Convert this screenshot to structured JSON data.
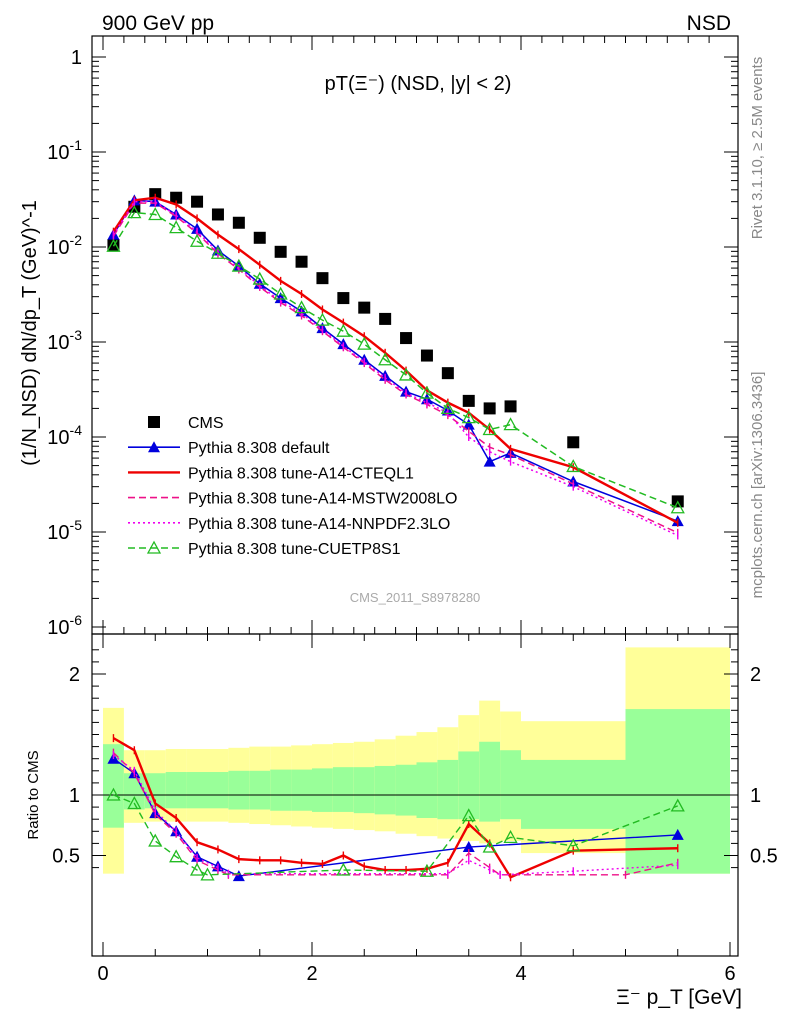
{
  "header": {
    "left": "900 GeV pp",
    "right": "NSD"
  },
  "side_text": {
    "rivet": "Rivet 3.1.10, ≥ 2.5M events",
    "mcplots": "mcplots.cern.ch [arXiv:1306.3436]"
  },
  "chart_data": [
    {
      "type": "scatter",
      "panel": "main",
      "title": "pT(Ξ⁻) (NSD, |y| < 2)",
      "ylabel": "(1/N_NSD) dN/dp_T (GeV)^-1",
      "xlabel": "Ξ⁻ p_T [GeV]",
      "yscale": "log",
      "xlim": [
        -0.1,
        6.1
      ],
      "ylim": [
        1e-06,
        2
      ],
      "y_ticks": [
        "10^-6",
        "10^-5",
        "10^-4",
        "10^-3",
        "10^-2",
        "10^-1",
        "1"
      ],
      "x_ticks": [
        "0",
        "2",
        "4",
        "6"
      ],
      "watermark": "CMS_2011_S8978280",
      "legend_position": "bottom-left",
      "series": [
        {
          "name": "CMS",
          "color": "#000000",
          "marker": "square",
          "x": [
            0.1,
            0.3,
            0.5,
            0.7,
            0.9,
            1.1,
            1.3,
            1.5,
            1.7,
            1.9,
            2.1,
            2.3,
            2.5,
            2.7,
            2.9,
            3.1,
            3.3,
            3.5,
            3.7,
            3.9,
            4.5,
            5.5
          ],
          "y": [
            0.0105,
            0.0265,
            0.036,
            0.033,
            0.03,
            0.022,
            0.018,
            0.0125,
            0.0089,
            0.007,
            0.0047,
            0.0029,
            0.0023,
            0.00175,
            0.0011,
            0.00072,
            0.00047,
            0.00024,
            0.0002,
            0.00021,
            8.8e-05,
            2.1e-05
          ]
        },
        {
          "name": "Pythia 8.308 default",
          "color": "#0000dd",
          "marker": "triangle-filled",
          "line": "solid",
          "x": [
            0.1,
            0.3,
            0.5,
            0.7,
            0.9,
            1.1,
            1.3,
            1.5,
            1.7,
            1.9,
            2.1,
            2.3,
            2.5,
            2.7,
            2.9,
            3.1,
            3.3,
            3.5,
            3.7,
            3.9,
            4.5,
            5.5
          ],
          "y": [
            0.0135,
            0.031,
            0.03,
            0.022,
            0.0155,
            0.0092,
            0.0063,
            0.0041,
            0.0029,
            0.0021,
            0.0014,
            0.00095,
            0.00065,
            0.00044,
            0.0003,
            0.00025,
            0.00019,
            0.000135,
            5.5e-05,
            6.8e-05,
            3.4e-05,
            1.3e-05
          ]
        },
        {
          "name": "Pythia 8.308 tune-A14-CTEQL1",
          "color": "#ee0000",
          "marker": "none",
          "line": "solid",
          "x": [
            0.1,
            0.3,
            0.5,
            0.7,
            0.9,
            1.1,
            1.3,
            1.5,
            1.7,
            1.9,
            2.1,
            2.3,
            2.5,
            2.7,
            2.9,
            3.1,
            3.3,
            3.5,
            3.7,
            3.9,
            4.5,
            5.5
          ],
          "y": [
            0.0145,
            0.031,
            0.033,
            0.028,
            0.02,
            0.0135,
            0.0095,
            0.0065,
            0.0044,
            0.0032,
            0.0022,
            0.0016,
            0.00115,
            0.00077,
            0.0005,
            0.00031,
            0.00023,
            0.00018,
            0.00012,
            7.5e-05,
            4.8e-05,
            1.25e-05
          ]
        },
        {
          "name": "Pythia 8.308 tune-A14-MSTW2008LO",
          "color": "#ee1188",
          "marker": "none",
          "line": "dashed",
          "x": [
            0.1,
            0.3,
            0.5,
            0.7,
            0.9,
            1.1,
            1.3,
            1.5,
            1.7,
            1.9,
            2.1,
            2.3,
            2.5,
            2.7,
            2.9,
            3.1,
            3.3,
            3.5,
            3.7,
            3.9,
            4.5,
            5.5
          ],
          "y": [
            0.013,
            0.029,
            0.029,
            0.021,
            0.014,
            0.0085,
            0.0058,
            0.0038,
            0.0026,
            0.0019,
            0.0013,
            0.00088,
            0.0006,
            0.0004,
            0.00028,
            0.00022,
            0.00017,
            0.000115,
            7.8e-05,
            6.5e-05,
            3.2e-05,
            9.8e-06
          ]
        },
        {
          "name": "Pythia 8.308 tune-A14-NNPDF2.3LO",
          "color": "#ee00ee",
          "marker": "none",
          "line": "dotted",
          "x": [
            0.1,
            0.3,
            0.5,
            0.7,
            0.9,
            1.1,
            1.3,
            1.5,
            1.7,
            1.9,
            2.1,
            2.3,
            2.5,
            2.7,
            2.9,
            3.1,
            3.3,
            3.5,
            3.7,
            3.9,
            4.5,
            5.5
          ],
          "y": [
            0.0135,
            0.03,
            0.03,
            0.0215,
            0.0145,
            0.0088,
            0.006,
            0.0039,
            0.0027,
            0.002,
            0.00135,
            0.0009,
            0.00062,
            0.00042,
            0.00029,
            0.00023,
            0.00018,
            0.0001,
            7e-05,
            5.5e-05,
            3e-05,
            9.2e-06
          ]
        },
        {
          "name": "Pythia 8.308 tune-CUETP8S1",
          "color": "#22bb22",
          "marker": "triangle-open",
          "line": "dashed",
          "x": [
            0.1,
            0.3,
            0.5,
            0.7,
            0.9,
            1.1,
            1.3,
            1.5,
            1.7,
            1.9,
            2.1,
            2.3,
            2.5,
            2.7,
            2.9,
            3.1,
            3.3,
            3.5,
            3.7,
            3.9,
            4.5,
            5.5
          ],
          "y": [
            0.0102,
            0.023,
            0.022,
            0.016,
            0.0115,
            0.0086,
            0.0063,
            0.0046,
            0.0032,
            0.0023,
            0.0017,
            0.0013,
            0.00095,
            0.00065,
            0.00045,
            0.00029,
            0.0002,
            0.00016,
            0.00012,
            0.000135,
            4.9e-05,
            1.8e-05
          ]
        }
      ]
    },
    {
      "type": "line",
      "panel": "ratio",
      "ylabel": "Ratio to CMS",
      "xlabel": "Ξ⁻ p_T [GeV]",
      "xlim": [
        -0.1,
        6.1
      ],
      "ylim": [
        0.35,
        2.3
      ],
      "y_ticks": [
        "0.5",
        "1",
        "2"
      ],
      "x_ticks": [
        "0",
        "2",
        "4",
        "6"
      ],
      "bands": {
        "edges": [
          0,
          0.2,
          0.4,
          0.6,
          0.8,
          1.0,
          1.2,
          1.4,
          1.6,
          1.8,
          2.0,
          2.2,
          2.4,
          2.6,
          2.8,
          3.0,
          3.2,
          3.4,
          3.6,
          3.8,
          4.0,
          5.0,
          6.0
        ],
        "outer_color": "#ffff99",
        "inner_color": "#99ff99",
        "outer_lo": [
          0.35,
          0.77,
          0.78,
          0.78,
          0.78,
          0.78,
          0.77,
          0.76,
          0.75,
          0.74,
          0.73,
          0.72,
          0.71,
          0.7,
          0.68,
          0.66,
          0.64,
          0.62,
          0.6,
          0.62,
          0.52,
          0.35
        ],
        "outer_hi": [
          1.72,
          1.37,
          1.37,
          1.38,
          1.38,
          1.38,
          1.39,
          1.4,
          1.4,
          1.41,
          1.42,
          1.43,
          1.44,
          1.46,
          1.49,
          1.52,
          1.56,
          1.66,
          1.78,
          1.69,
          1.61,
          2.22
        ],
        "inner_lo": [
          0.73,
          0.88,
          0.89,
          0.89,
          0.89,
          0.89,
          0.88,
          0.88,
          0.87,
          0.87,
          0.86,
          0.86,
          0.85,
          0.84,
          0.83,
          0.81,
          0.8,
          0.8,
          0.78,
          0.8,
          0.72,
          0.35
        ],
        "inner_hi": [
          1.42,
          1.18,
          1.18,
          1.19,
          1.19,
          1.19,
          1.2,
          1.2,
          1.21,
          1.21,
          1.22,
          1.23,
          1.23,
          1.24,
          1.25,
          1.27,
          1.29,
          1.36,
          1.44,
          1.37,
          1.29,
          1.71
        ]
      },
      "series": [
        {
          "name": "Pythia 8.308 default",
          "color": "#0000dd",
          "marker": "triangle-filled",
          "line": "solid",
          "x": [
            0.1,
            0.3,
            0.5,
            0.7,
            0.9,
            1.1,
            1.3,
            3.5,
            5.5
          ],
          "y": [
            1.3,
            1.18,
            0.85,
            0.7,
            0.49,
            0.41,
            0.33,
            0.57,
            0.67
          ]
        },
        {
          "name": "Pythia 8.308 tune-A14-CTEQL1",
          "color": "#ee0000",
          "marker": "none",
          "line": "solid",
          "x": [
            0.1,
            0.3,
            0.5,
            0.7,
            0.9,
            1.1,
            1.3,
            1.5,
            1.7,
            1.9,
            2.1,
            2.3,
            2.5,
            2.7,
            2.9,
            3.1,
            3.3,
            3.5,
            3.7,
            3.9,
            4.5,
            5.5
          ],
          "y": [
            1.47,
            1.37,
            0.93,
            0.81,
            0.61,
            0.55,
            0.47,
            0.46,
            0.46,
            0.44,
            0.43,
            0.5,
            0.41,
            0.38,
            0.38,
            0.39,
            0.44,
            0.76,
            0.6,
            0.32,
            0.54,
            0.56
          ]
        },
        {
          "name": "Pythia 8.308 tune-A14-MSTW2008LO",
          "color": "#ee1188",
          "marker": "none",
          "line": "dashed",
          "x": [
            0.1,
            0.3,
            0.5,
            0.7,
            0.9,
            1.1,
            1.2,
            3.3,
            3.5,
            3.7,
            3.8,
            5.0,
            5.5
          ],
          "y": [
            1.35,
            1.18,
            0.84,
            0.68,
            0.46,
            0.38,
            0.34,
            0.34,
            0.52,
            0.4,
            0.34,
            0.34,
            0.44
          ]
        },
        {
          "name": "Pythia 8.308 tune-A14-NNPDF2.3LO",
          "color": "#ee00ee",
          "marker": "none",
          "line": "dotted",
          "x": [
            0.1,
            0.3,
            0.5,
            0.7,
            0.9,
            1.1,
            1.2,
            3.3,
            3.5,
            3.7,
            3.8,
            4.5,
            5.5
          ],
          "y": [
            1.33,
            1.2,
            0.87,
            0.7,
            0.48,
            0.4,
            0.35,
            0.35,
            0.46,
            0.38,
            0.34,
            0.37,
            0.42
          ]
        },
        {
          "name": "Pythia 8.308 tune-CUETP8S1",
          "color": "#22bb22",
          "marker": "triangle-open",
          "line": "dashed",
          "x": [
            0.1,
            0.3,
            0.5,
            0.7,
            0.9,
            1.0,
            2.3,
            3.1,
            3.5,
            3.7,
            3.9,
            4.5,
            5.5
          ],
          "y": [
            1.0,
            0.93,
            0.62,
            0.49,
            0.38,
            0.34,
            0.38,
            0.37,
            0.83,
            0.57,
            0.65,
            0.58,
            0.91
          ]
        }
      ]
    }
  ]
}
